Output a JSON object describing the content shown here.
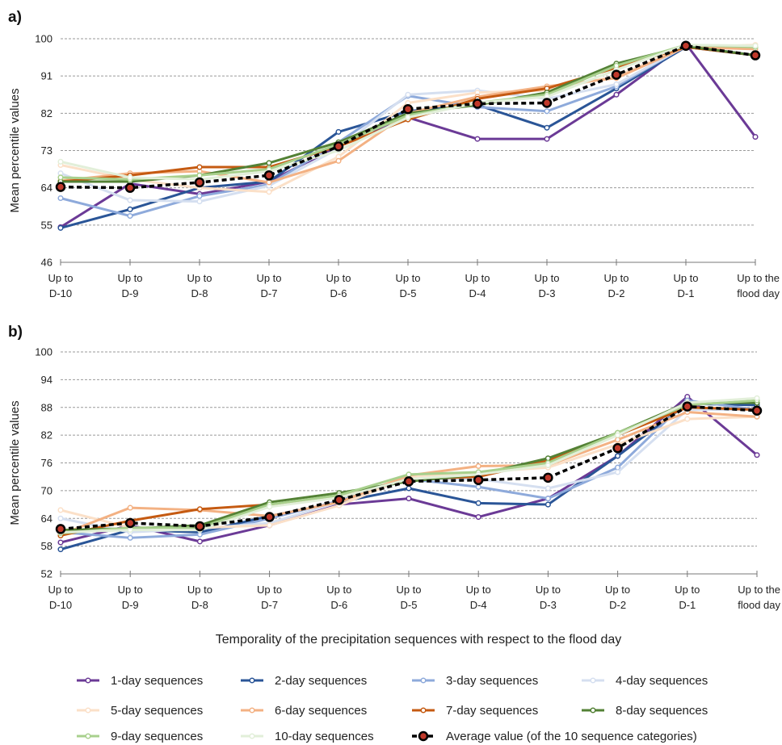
{
  "figure": {
    "xlabel": "Temporality of the precipitation sequences with respect to the flood day"
  },
  "categories": [
    [
      "Up to",
      "D-10"
    ],
    [
      "Up to",
      "D-9"
    ],
    [
      "Up to",
      "D-8"
    ],
    [
      "Up to",
      "D-7"
    ],
    [
      "Up to",
      "D-6"
    ],
    [
      "Up to",
      "D-5"
    ],
    [
      "Up to",
      "D-4"
    ],
    [
      "Up to",
      "D-3"
    ],
    [
      "Up to",
      "D-2"
    ],
    [
      "Up to",
      "D-1"
    ],
    [
      "Up to the",
      "flood day"
    ]
  ],
  "highlight": {
    "text": "flood day",
    "color": "#e0201b"
  },
  "series_styles": [
    {
      "name": "1-day sequences",
      "color": "#6b3a96"
    },
    {
      "name": "2-day sequences",
      "color": "#2a5597"
    },
    {
      "name": "3-day sequences",
      "color": "#8eaadb"
    },
    {
      "name": "4-day sequences",
      "color": "#d5dff0"
    },
    {
      "name": "5-day sequences",
      "color": "#fbe0c8"
    },
    {
      "name": "6-day sequences",
      "color": "#f3b183"
    },
    {
      "name": "7-day sequences",
      "color": "#c55a11"
    },
    {
      "name": "8-day sequences",
      "color": "#538135"
    },
    {
      "name": "9-day sequences",
      "color": "#a8d08d"
    },
    {
      "name": "10-day sequences",
      "color": "#e2efd9"
    },
    {
      "name": "Average value (of the 10 sequence categories)",
      "color": "#000000",
      "dashed": true
    }
  ],
  "chart_data": [
    {
      "type": "line",
      "panel": "a)",
      "ylabel": "Mean percentile values",
      "ylim": [
        46,
        100
      ],
      "yticks": [
        46,
        55,
        64,
        73,
        82,
        91,
        100
      ],
      "grid": true,
      "legend_position": "bottom",
      "series": [
        {
          "name": "1-day sequences",
          "values": [
            54.5,
            65.0,
            62.5,
            65.5,
            74.0,
            81.0,
            75.8,
            75.8,
            86.5,
            98.8,
            76.3
          ]
        },
        {
          "name": "2-day sequences",
          "values": [
            54.3,
            58.8,
            64.0,
            65.5,
            77.5,
            82.5,
            84.0,
            78.5,
            88.0,
            98.0,
            96.0
          ]
        },
        {
          "name": "3-day sequences",
          "values": [
            61.5,
            57.2,
            62.0,
            64.8,
            75.0,
            86.2,
            83.5,
            82.5,
            88.5,
            98.3,
            96.0
          ]
        },
        {
          "name": "4-day sequences",
          "values": [
            67.5,
            61.0,
            60.7,
            64.5,
            73.5,
            86.5,
            87.5,
            85.5,
            89.0,
            98.2,
            98.0
          ]
        },
        {
          "name": "5-day sequences",
          "values": [
            69.5,
            66.0,
            64.0,
            63.0,
            71.5,
            84.5,
            87.0,
            87.5,
            91.0,
            98.0,
            98.5
          ]
        },
        {
          "name": "6-day sequences",
          "values": [
            65.7,
            67.5,
            68.0,
            65.3,
            70.5,
            82.0,
            86.0,
            88.5,
            90.5,
            98.0,
            97.5
          ]
        },
        {
          "name": "7-day sequences",
          "values": [
            65.5,
            67.0,
            69.0,
            69.0,
            74.0,
            80.5,
            85.5,
            88.0,
            93.0,
            98.0,
            96.0
          ]
        },
        {
          "name": "8-day sequences",
          "values": [
            65.5,
            65.5,
            67.0,
            70.0,
            75.0,
            82.0,
            84.0,
            87.0,
            94.0,
            98.2,
            96.0
          ]
        },
        {
          "name": "9-day sequences",
          "values": [
            66.5,
            66.0,
            67.0,
            68.5,
            74.5,
            81.5,
            84.5,
            86.5,
            93.5,
            98.5,
            98.0
          ]
        },
        {
          "name": "10-day sequences",
          "values": [
            70.3,
            66.5,
            66.0,
            68.0,
            73.0,
            81.0,
            84.5,
            86.0,
            92.5,
            98.5,
            98.3
          ]
        },
        {
          "name": "Average value (of the 10 sequence categories)",
          "values": [
            64.2,
            64.0,
            65.3,
            67.0,
            74.0,
            83.0,
            84.3,
            84.5,
            91.3,
            98.3,
            96.0
          ]
        }
      ]
    },
    {
      "type": "line",
      "panel": "b)",
      "ylabel": "Mean percentile values",
      "ylim": [
        52,
        100
      ],
      "yticks": [
        52,
        58,
        64,
        70,
        76,
        82,
        88,
        94,
        100
      ],
      "grid": true,
      "legend_position": "bottom",
      "series": [
        {
          "name": "1-day sequences",
          "values": [
            58.8,
            62.5,
            59.0,
            62.5,
            67.0,
            68.3,
            64.3,
            68.3,
            77.5,
            90.3,
            77.7
          ]
        },
        {
          "name": "2-day sequences",
          "values": [
            57.3,
            61.5,
            61.0,
            64.5,
            67.5,
            70.5,
            67.3,
            67.0,
            77.5,
            88.8,
            88.5
          ]
        },
        {
          "name": "3-day sequences",
          "values": [
            61.0,
            59.8,
            60.5,
            64.0,
            67.8,
            72.5,
            70.8,
            68.3,
            75.0,
            89.5,
            87.5
          ]
        },
        {
          "name": "4-day sequences",
          "values": [
            64.0,
            61.0,
            61.8,
            63.0,
            67.5,
            72.5,
            72.5,
            70.5,
            74.0,
            87.5,
            87.5
          ]
        },
        {
          "name": "5-day sequences",
          "values": [
            65.8,
            62.0,
            62.0,
            62.5,
            66.8,
            73.0,
            74.0,
            75.0,
            80.0,
            85.5,
            86.0
          ]
        },
        {
          "name": "6-day sequences",
          "values": [
            60.5,
            66.3,
            65.8,
            64.5,
            67.5,
            73.3,
            75.3,
            75.5,
            81.0,
            87.0,
            86.0
          ]
        },
        {
          "name": "7-day sequences",
          "values": [
            60.3,
            63.5,
            66.0,
            67.0,
            68.5,
            72.5,
            73.0,
            76.5,
            82.0,
            88.0,
            87.5
          ]
        },
        {
          "name": "8-day sequences",
          "values": [
            61.5,
            61.8,
            62.5,
            67.5,
            69.5,
            72.0,
            73.5,
            77.0,
            82.5,
            89.0,
            89.0
          ]
        },
        {
          "name": "9-day sequences",
          "values": [
            60.8,
            62.0,
            62.0,
            67.0,
            69.0,
            73.5,
            74.0,
            76.0,
            82.5,
            88.5,
            89.5
          ]
        },
        {
          "name": "10-day sequences",
          "values": [
            61.0,
            61.5,
            61.5,
            66.5,
            68.5,
            72.5,
            73.5,
            75.5,
            82.0,
            89.0,
            90.0
          ]
        },
        {
          "name": "Average value (of the 10 sequence categories)",
          "values": [
            61.7,
            63.0,
            62.3,
            64.3,
            68.0,
            72.0,
            72.3,
            72.8,
            79.2,
            88.2,
            87.3
          ]
        }
      ]
    }
  ]
}
